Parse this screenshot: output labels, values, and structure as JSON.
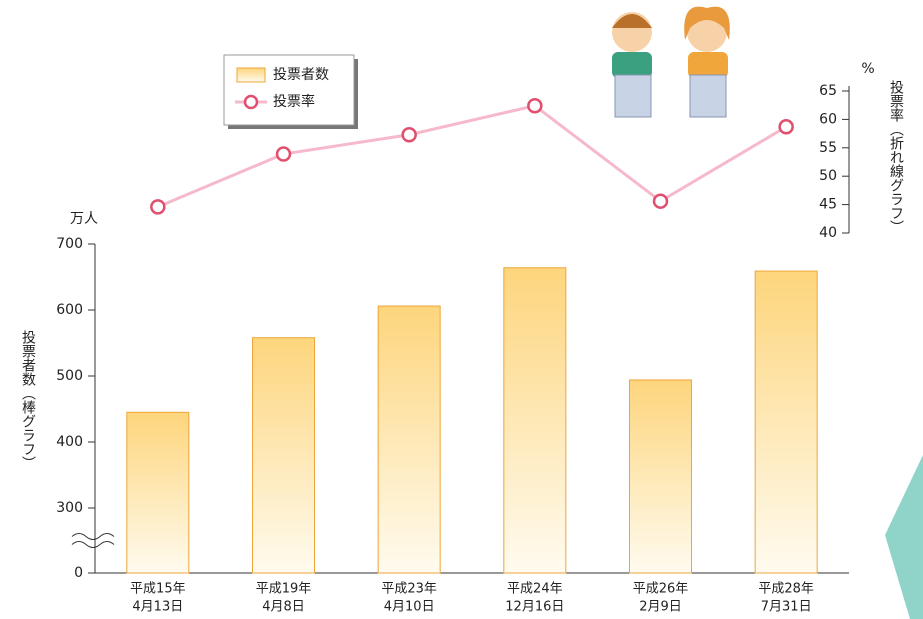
{
  "chart_data": {
    "type": "bar",
    "categories": [
      [
        "平成15年",
        "4月13日"
      ],
      [
        "平成19年",
        "4月8日"
      ],
      [
        "平成23年",
        "4月10日"
      ],
      [
        "平成24年",
        "12月16日"
      ],
      [
        "平成26年",
        "2月9日"
      ],
      [
        "平成28年",
        "7月31日"
      ]
    ],
    "series": [
      {
        "name": "投票者数",
        "type": "bar",
        "color": "#fcd27a",
        "stroke": "#eea53a",
        "values": [
          445,
          558,
          606,
          664,
          494,
          659
        ]
      },
      {
        "name": "投票率",
        "type": "line",
        "axis": "y2",
        "color": "#f6b9cb",
        "marker_color": "#e0506e",
        "values": [
          44.6,
          53.9,
          57.3,
          62.4,
          45.6,
          58.7
        ]
      }
    ],
    "y_unit": "万人",
    "y_label": "投票者数（棒グラフ）",
    "ylim": [
      0,
      700
    ],
    "yticks": [
      0,
      300,
      400,
      500,
      600,
      700
    ],
    "axis_break": [
      0,
      300
    ],
    "y2_unit": "%",
    "y2_label": "投票率（折れ線グラフ）",
    "y2lim": [
      40,
      65
    ],
    "y2ticks": [
      40,
      45,
      50,
      55,
      60,
      65
    ],
    "legend": "top-left"
  }
}
